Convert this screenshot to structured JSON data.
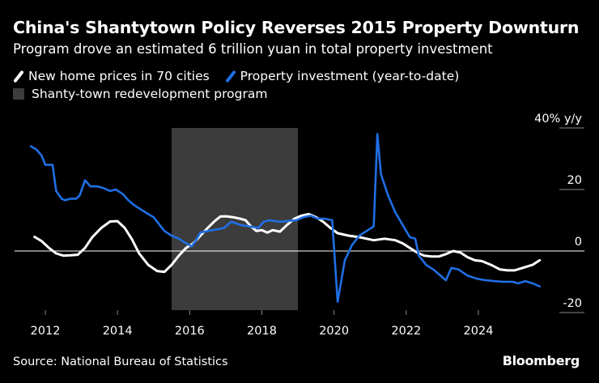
{
  "title": "China's Shantytown Policy Reverses 2015 Property Downturn",
  "subtitle": "Program drove an estimated 6 trillion yuan in total property investment",
  "legend": {
    "series1": "New home prices in 70 cities",
    "series2": "Property investment (year-to-date)",
    "band": "Shanty-town redevelopment program"
  },
  "source": "Source: National Bureau of Statistics",
  "brand": "Bloomberg",
  "colors": {
    "series1": "#ffffff",
    "series2": "#1f6fe5",
    "band": "#3c3c3c",
    "background": "#000000"
  },
  "chart_data": {
    "type": "line",
    "title": "China's Shantytown Policy Reverses 2015 Property Downturn",
    "subtitle": "Program drove an estimated 6 trillion yuan in total property investment",
    "ylabel": "",
    "y_unit_label": "% y/y",
    "xlim": [
      2011.5,
      2026.0
    ],
    "ylim": [
      -22,
      40
    ],
    "y_ticks": [
      -20,
      0,
      20,
      40
    ],
    "y_tick_labels": [
      "-20",
      "0",
      "20",
      "40%"
    ],
    "x_ticks": [
      2012,
      2014,
      2016,
      2018,
      2020,
      2022,
      2024
    ],
    "x_tick_labels": [
      "2012",
      "2014",
      "2016",
      "2018",
      "2020",
      "2022",
      "2024"
    ],
    "grid": "none",
    "zero_line": true,
    "legend_position": "top-left",
    "shaded_band": {
      "name": "Shanty-town redevelopment program",
      "x_start": 2015.5,
      "x_end": 2019.0
    },
    "series": [
      {
        "name": "New home prices in 70 cities",
        "color": "#ffffff",
        "points": [
          [
            2011.7,
            4.6
          ],
          [
            2011.9,
            3.2
          ],
          [
            2012.1,
            1.0
          ],
          [
            2012.3,
            -0.8
          ],
          [
            2012.5,
            -1.5
          ],
          [
            2012.7,
            -1.4
          ],
          [
            2012.9,
            -1.2
          ],
          [
            2013.1,
            1.0
          ],
          [
            2013.3,
            4.5
          ],
          [
            2013.55,
            7.5
          ],
          [
            2013.8,
            9.6
          ],
          [
            2014.0,
            9.7
          ],
          [
            2014.2,
            7.5
          ],
          [
            2014.4,
            3.8
          ],
          [
            2014.6,
            -0.8
          ],
          [
            2014.85,
            -4.5
          ],
          [
            2015.1,
            -6.5
          ],
          [
            2015.3,
            -6.8
          ],
          [
            2015.5,
            -4.5
          ],
          [
            2015.7,
            -1.5
          ],
          [
            2015.9,
            1.0
          ],
          [
            2016.1,
            2.5
          ],
          [
            2016.3,
            5.0
          ],
          [
            2016.5,
            7.5
          ],
          [
            2016.7,
            9.8
          ],
          [
            2016.85,
            11.2
          ],
          [
            2017.0,
            11.3
          ],
          [
            2017.2,
            11.0
          ],
          [
            2017.4,
            10.5
          ],
          [
            2017.55,
            10.0
          ],
          [
            2017.7,
            8.0
          ],
          [
            2017.85,
            6.5
          ],
          [
            2018.0,
            6.8
          ],
          [
            2018.15,
            6.0
          ],
          [
            2018.3,
            6.8
          ],
          [
            2018.5,
            6.3
          ],
          [
            2018.7,
            8.5
          ],
          [
            2018.9,
            10.5
          ],
          [
            2019.1,
            11.5
          ],
          [
            2019.3,
            12.0
          ],
          [
            2019.5,
            11.0
          ],
          [
            2019.7,
            9.5
          ],
          [
            2019.9,
            7.5
          ],
          [
            2020.1,
            5.8
          ],
          [
            2020.4,
            5.0
          ],
          [
            2020.7,
            4.5
          ],
          [
            2020.9,
            4.0
          ],
          [
            2021.1,
            3.5
          ],
          [
            2021.4,
            4.0
          ],
          [
            2021.7,
            3.5
          ],
          [
            2021.9,
            2.5
          ],
          [
            2022.1,
            1.0
          ],
          [
            2022.3,
            -0.5
          ],
          [
            2022.5,
            -1.5
          ],
          [
            2022.7,
            -1.8
          ],
          [
            2022.9,
            -1.8
          ],
          [
            2023.1,
            -1.0
          ],
          [
            2023.3,
            0.0
          ],
          [
            2023.5,
            -0.5
          ],
          [
            2023.7,
            -2.0
          ],
          [
            2023.9,
            -3.0
          ],
          [
            2024.1,
            -3.3
          ],
          [
            2024.35,
            -4.5
          ],
          [
            2024.6,
            -6.0
          ],
          [
            2024.8,
            -6.3
          ],
          [
            2025.0,
            -6.3
          ],
          [
            2025.3,
            -5.2
          ],
          [
            2025.5,
            -4.5
          ],
          [
            2025.7,
            -3.0
          ]
        ]
      },
      {
        "name": "Property investment (year-to-date)",
        "color": "#1f6fe5",
        "points": [
          [
            2011.6,
            34.0
          ],
          [
            2011.75,
            33.0
          ],
          [
            2011.9,
            31.0
          ],
          [
            2012.0,
            28.0
          ],
          [
            2012.2,
            28.0
          ],
          [
            2012.3,
            19.5
          ],
          [
            2012.45,
            17.0
          ],
          [
            2012.55,
            16.5
          ],
          [
            2012.7,
            17.0
          ],
          [
            2012.85,
            17.0
          ],
          [
            2012.95,
            18.0
          ],
          [
            2013.1,
            23.0
          ],
          [
            2013.25,
            21.0
          ],
          [
            2013.45,
            21.0
          ],
          [
            2013.6,
            20.5
          ],
          [
            2013.8,
            19.5
          ],
          [
            2013.95,
            20.0
          ],
          [
            2014.15,
            18.5
          ],
          [
            2014.3,
            16.5
          ],
          [
            2014.45,
            15.0
          ],
          [
            2014.65,
            13.5
          ],
          [
            2014.85,
            12.0
          ],
          [
            2015.0,
            11.0
          ],
          [
            2015.1,
            9.5
          ],
          [
            2015.3,
            6.5
          ],
          [
            2015.5,
            5.0
          ],
          [
            2015.7,
            4.0
          ],
          [
            2015.9,
            2.5
          ],
          [
            2016.05,
            1.5
          ],
          [
            2016.15,
            3.0
          ],
          [
            2016.3,
            6.0
          ],
          [
            2016.5,
            6.5
          ],
          [
            2016.75,
            7.0
          ],
          [
            2016.95,
            7.5
          ],
          [
            2017.15,
            9.5
          ],
          [
            2017.4,
            8.5
          ],
          [
            2017.65,
            8.0
          ],
          [
            2017.9,
            7.5
          ],
          [
            2018.05,
            9.5
          ],
          [
            2018.2,
            10.0
          ],
          [
            2018.5,
            9.5
          ],
          [
            2018.75,
            9.8
          ],
          [
            2018.95,
            10.0
          ],
          [
            2019.15,
            11.0
          ],
          [
            2019.35,
            11.5
          ],
          [
            2019.55,
            10.5
          ],
          [
            2019.75,
            10.5
          ],
          [
            2019.95,
            10.0
          ],
          [
            2020.1,
            -16.5
          ],
          [
            2020.3,
            -3.0
          ],
          [
            2020.5,
            2.0
          ],
          [
            2020.7,
            5.0
          ],
          [
            2020.9,
            6.5
          ],
          [
            2021.1,
            8.0
          ],
          [
            2021.2,
            38.0
          ],
          [
            2021.3,
            25.0
          ],
          [
            2021.5,
            18.0
          ],
          [
            2021.7,
            12.5
          ],
          [
            2021.9,
            8.5
          ],
          [
            2022.1,
            4.5
          ],
          [
            2022.25,
            4.0
          ],
          [
            2022.35,
            -1.5
          ],
          [
            2022.55,
            -4.5
          ],
          [
            2022.75,
            -6.0
          ],
          [
            2022.95,
            -8.0
          ],
          [
            2023.1,
            -9.5
          ],
          [
            2023.25,
            -5.5
          ],
          [
            2023.45,
            -6.0
          ],
          [
            2023.7,
            -8.0
          ],
          [
            2023.95,
            -9.0
          ],
          [
            2024.2,
            -9.5
          ],
          [
            2024.45,
            -9.8
          ],
          [
            2024.7,
            -10.0
          ],
          [
            2024.95,
            -10.0
          ],
          [
            2025.1,
            -10.5
          ],
          [
            2025.3,
            -9.8
          ],
          [
            2025.5,
            -10.5
          ],
          [
            2025.7,
            -11.5
          ]
        ]
      }
    ]
  }
}
